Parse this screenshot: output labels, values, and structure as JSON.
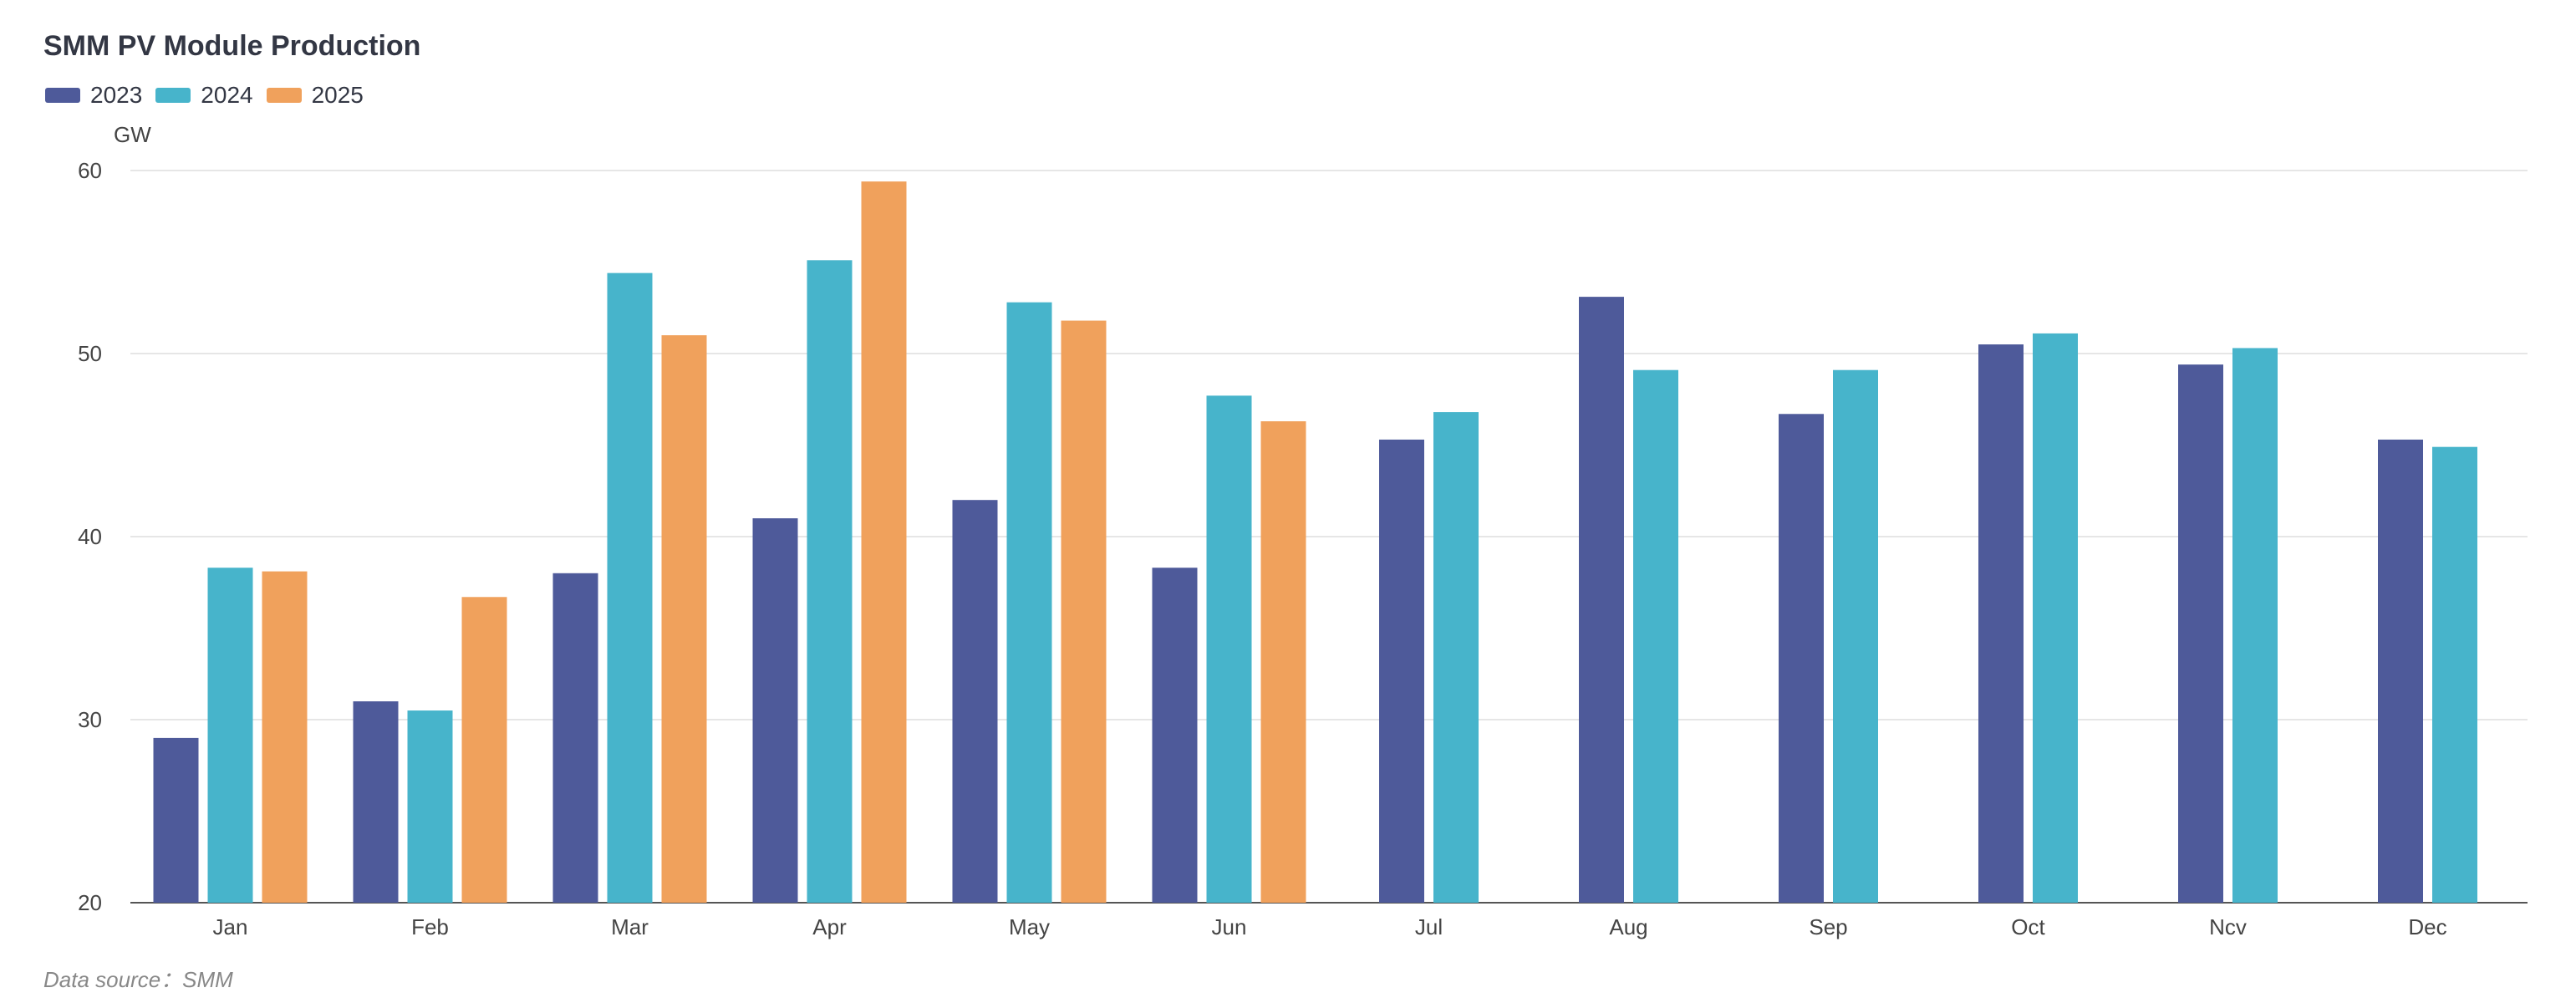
{
  "chart_data": {
    "type": "bar",
    "title": "SMM PV Module Production",
    "ylabel": "GW",
    "xlabel": "",
    "ylim": [
      20,
      60
    ],
    "yticks": [
      20,
      30,
      40,
      50,
      60
    ],
    "grid": true,
    "legend_position": "top-left",
    "categories": [
      "Jan",
      "Feb",
      "Mar",
      "Apr",
      "May",
      "Jun",
      "Jul",
      "Aug",
      "Sep",
      "Oct",
      "Ncv",
      "Dec"
    ],
    "series": [
      {
        "name": "2023",
        "color": "#4e5a9a",
        "values": [
          29.0,
          31.0,
          38.0,
          41.0,
          42.0,
          38.3,
          45.3,
          53.1,
          46.7,
          50.5,
          49.4,
          45.3
        ]
      },
      {
        "name": "2024",
        "color": "#47b4cb",
        "values": [
          38.3,
          30.5,
          54.4,
          55.1,
          52.8,
          47.7,
          46.8,
          49.1,
          49.1,
          51.1,
          50.3,
          44.9
        ]
      },
      {
        "name": "2025",
        "color": "#f0a15c",
        "values": [
          38.1,
          36.7,
          51.0,
          59.4,
          51.8,
          46.3,
          null,
          null,
          null,
          null,
          null,
          null
        ]
      }
    ],
    "source": "Data source：SMM"
  }
}
